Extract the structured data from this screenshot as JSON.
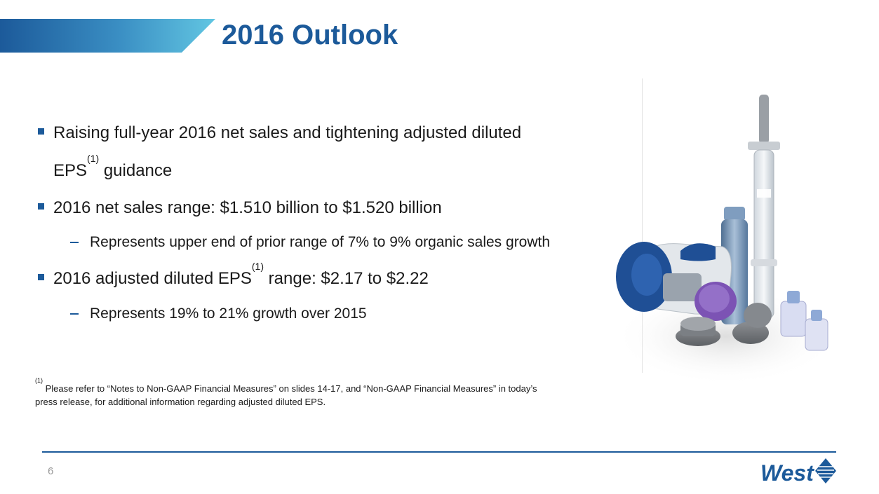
{
  "slide": {
    "title": "2016 Outlook",
    "page_number": "6"
  },
  "bullets": {
    "b1_line1": "Raising full-year 2016 net sales and tightening adjusted diluted",
    "b1_line2_pre": "EPS",
    "b1_line2_sup": "(1)",
    "b1_line2_post": " guidance",
    "b2": "2016 net sales range:  $1.510 billion to $1.520 billion",
    "b2_sub": "Represents upper end of prior range of 7% to 9% organic sales growth",
    "b3_pre": "2016 adjusted diluted EPS",
    "b3_sup": "(1)",
    "b3_post": " range:  $2.17 to $2.22",
    "b3_sub": "Represents 19% to 21% growth over 2015"
  },
  "footnote": {
    "marker": "(1)",
    "line1": " Please refer to “Notes to Non-GAAP Financial Measures” on slides 14-17, and “Non-GAAP Financial Measures” in today’s",
    "line2": "press release, for additional information regarding adjusted diluted EPS."
  },
  "logo": {
    "text": "West"
  },
  "colors": {
    "accent": "#1c5a9a",
    "title_bar_gradient_start": "#1c5a9a",
    "title_bar_gradient_end": "#5ec2df",
    "text": "#1a1a1a",
    "page_number": "#9a9a9a"
  },
  "icons": {
    "bullet": "square-bullet-icon",
    "sub_bullet": "dash-bullet-icon",
    "logo_mark": "west-diamond-logo-icon"
  }
}
